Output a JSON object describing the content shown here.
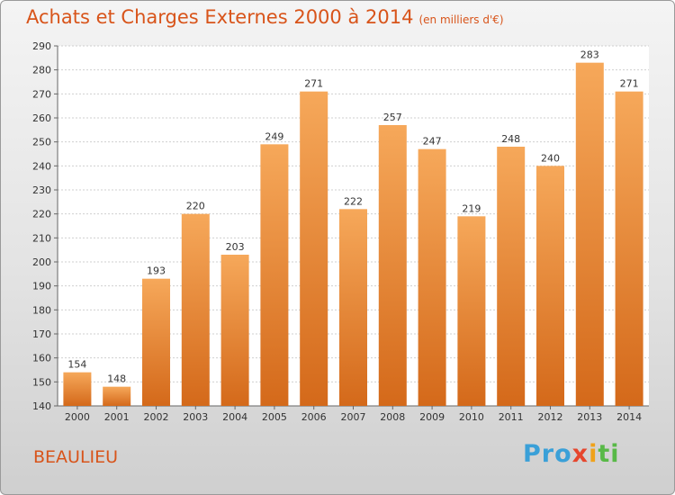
{
  "title": "Achats et Charges Externes 2000 à 2014",
  "subtitle": "(en milliers d'€)",
  "commune": "BEAULIEU",
  "logo": {
    "p1": "Pro",
    "p2": "x",
    "p3": "i",
    "p4": "ti"
  },
  "chart_data": {
    "type": "bar",
    "categories": [
      "2000",
      "2001",
      "2002",
      "2003",
      "2004",
      "2005",
      "2006",
      "2007",
      "2008",
      "2009",
      "2010",
      "2011",
      "2012",
      "2013",
      "2014"
    ],
    "values": [
      154,
      148,
      193,
      220,
      203,
      249,
      271,
      222,
      257,
      247,
      219,
      248,
      240,
      283,
      271
    ],
    "ylim": [
      140,
      290
    ],
    "yticks": [
      140,
      150,
      160,
      170,
      180,
      190,
      200,
      210,
      220,
      230,
      240,
      250,
      260,
      270,
      280,
      290
    ],
    "grid": true,
    "bar_color": "#f08c2a"
  }
}
